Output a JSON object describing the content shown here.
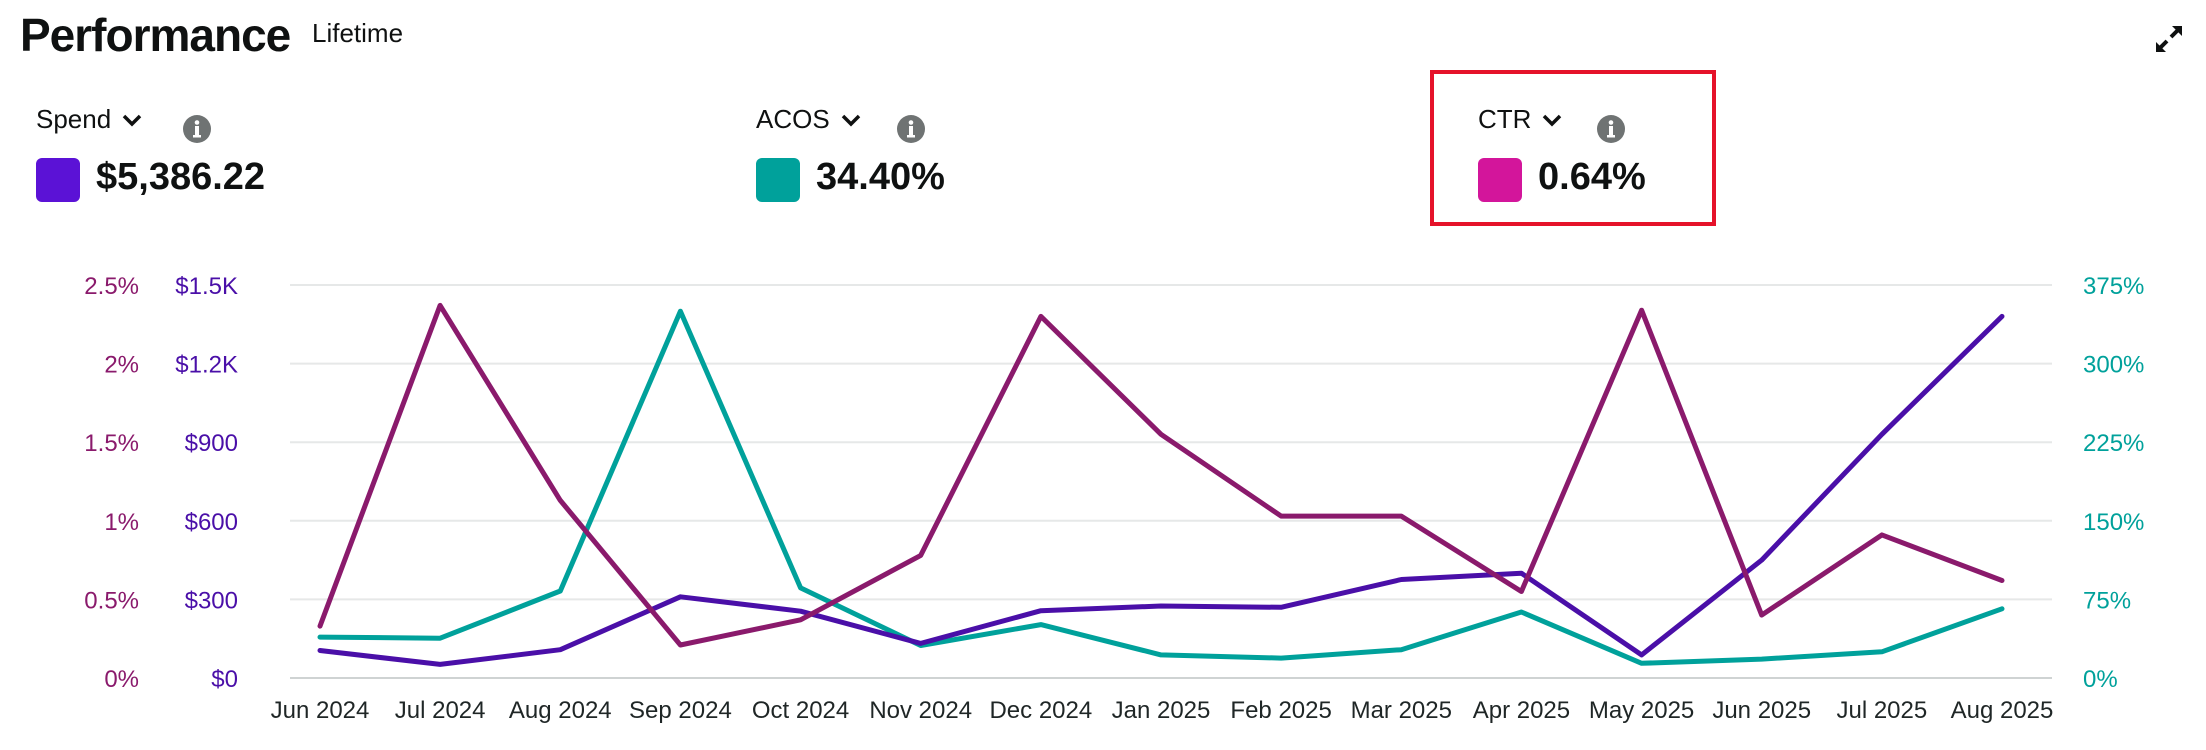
{
  "header": {
    "title": "Performance",
    "subtitle": "Lifetime"
  },
  "icons": {
    "expand": "expand-icon",
    "chevron": "chevron-down-icon",
    "info": "info-icon"
  },
  "metrics": [
    {
      "name": "Spend",
      "value": "$5,386.22",
      "color": "#5b12d6"
    },
    {
      "name": "ACOS",
      "value": "34.40%",
      "color": "#00a19b"
    },
    {
      "name": "CTR",
      "value": "0.64%",
      "color": "#d3159b"
    }
  ],
  "chart_data": {
    "type": "line",
    "categories": [
      "Jun 2024",
      "Jul 2024",
      "Aug 2024",
      "Sep 2024",
      "Oct 2024",
      "Nov 2024",
      "Dec 2024",
      "Jan 2025",
      "Feb 2025",
      "Mar 2025",
      "Apr 2025",
      "May 2025",
      "Jun 2025",
      "Jul 2025",
      "Aug 2025"
    ],
    "axes": {
      "ctr": {
        "side": "left-outer",
        "range": [
          0,
          2.5
        ],
        "tick_values": [
          0,
          0.5,
          1,
          1.5,
          2,
          2.5
        ],
        "tick_labels": [
          "0%",
          "0.5%",
          "1%",
          "1.5%",
          "2%",
          "2.5%"
        ],
        "color": "#8a1a6c"
      },
      "spend": {
        "side": "left-inner",
        "range": [
          0,
          1500
        ],
        "tick_values": [
          0,
          300,
          600,
          900,
          1200,
          1500
        ],
        "tick_labels": [
          "$0",
          "$300",
          "$600",
          "$900",
          "$1.2K",
          "$1.5K"
        ],
        "color": "#4a0fa8"
      },
      "acos": {
        "side": "right",
        "range": [
          0,
          375
        ],
        "tick_values": [
          0,
          75,
          150,
          225,
          300,
          375
        ],
        "tick_labels": [
          "0%",
          "75%",
          "150%",
          "225%",
          "300%",
          "375%"
        ],
        "color": "#00a19b"
      }
    },
    "series": [
      {
        "name": "Spend",
        "axis": "spend",
        "color": "#4a0fa8",
        "values": [
          105,
          52,
          108,
          310,
          255,
          132,
          257,
          275,
          270,
          376,
          400,
          88,
          450,
          930,
          1380
        ]
      },
      {
        "name": "ACOS",
        "axis": "acos",
        "color": "#00a19b",
        "values": [
          39,
          38,
          83,
          350,
          86,
          31,
          51,
          22,
          19,
          27,
          63,
          14,
          18,
          25,
          66
        ]
      },
      {
        "name": "CTR",
        "axis": "ctr",
        "color": "#8a1a6c",
        "values": [
          0.33,
          2.37,
          1.13,
          0.21,
          0.37,
          0.78,
          2.3,
          1.55,
          1.03,
          1.03,
          0.55,
          2.34,
          0.4,
          0.91,
          0.62
        ]
      }
    ],
    "grid": true
  }
}
